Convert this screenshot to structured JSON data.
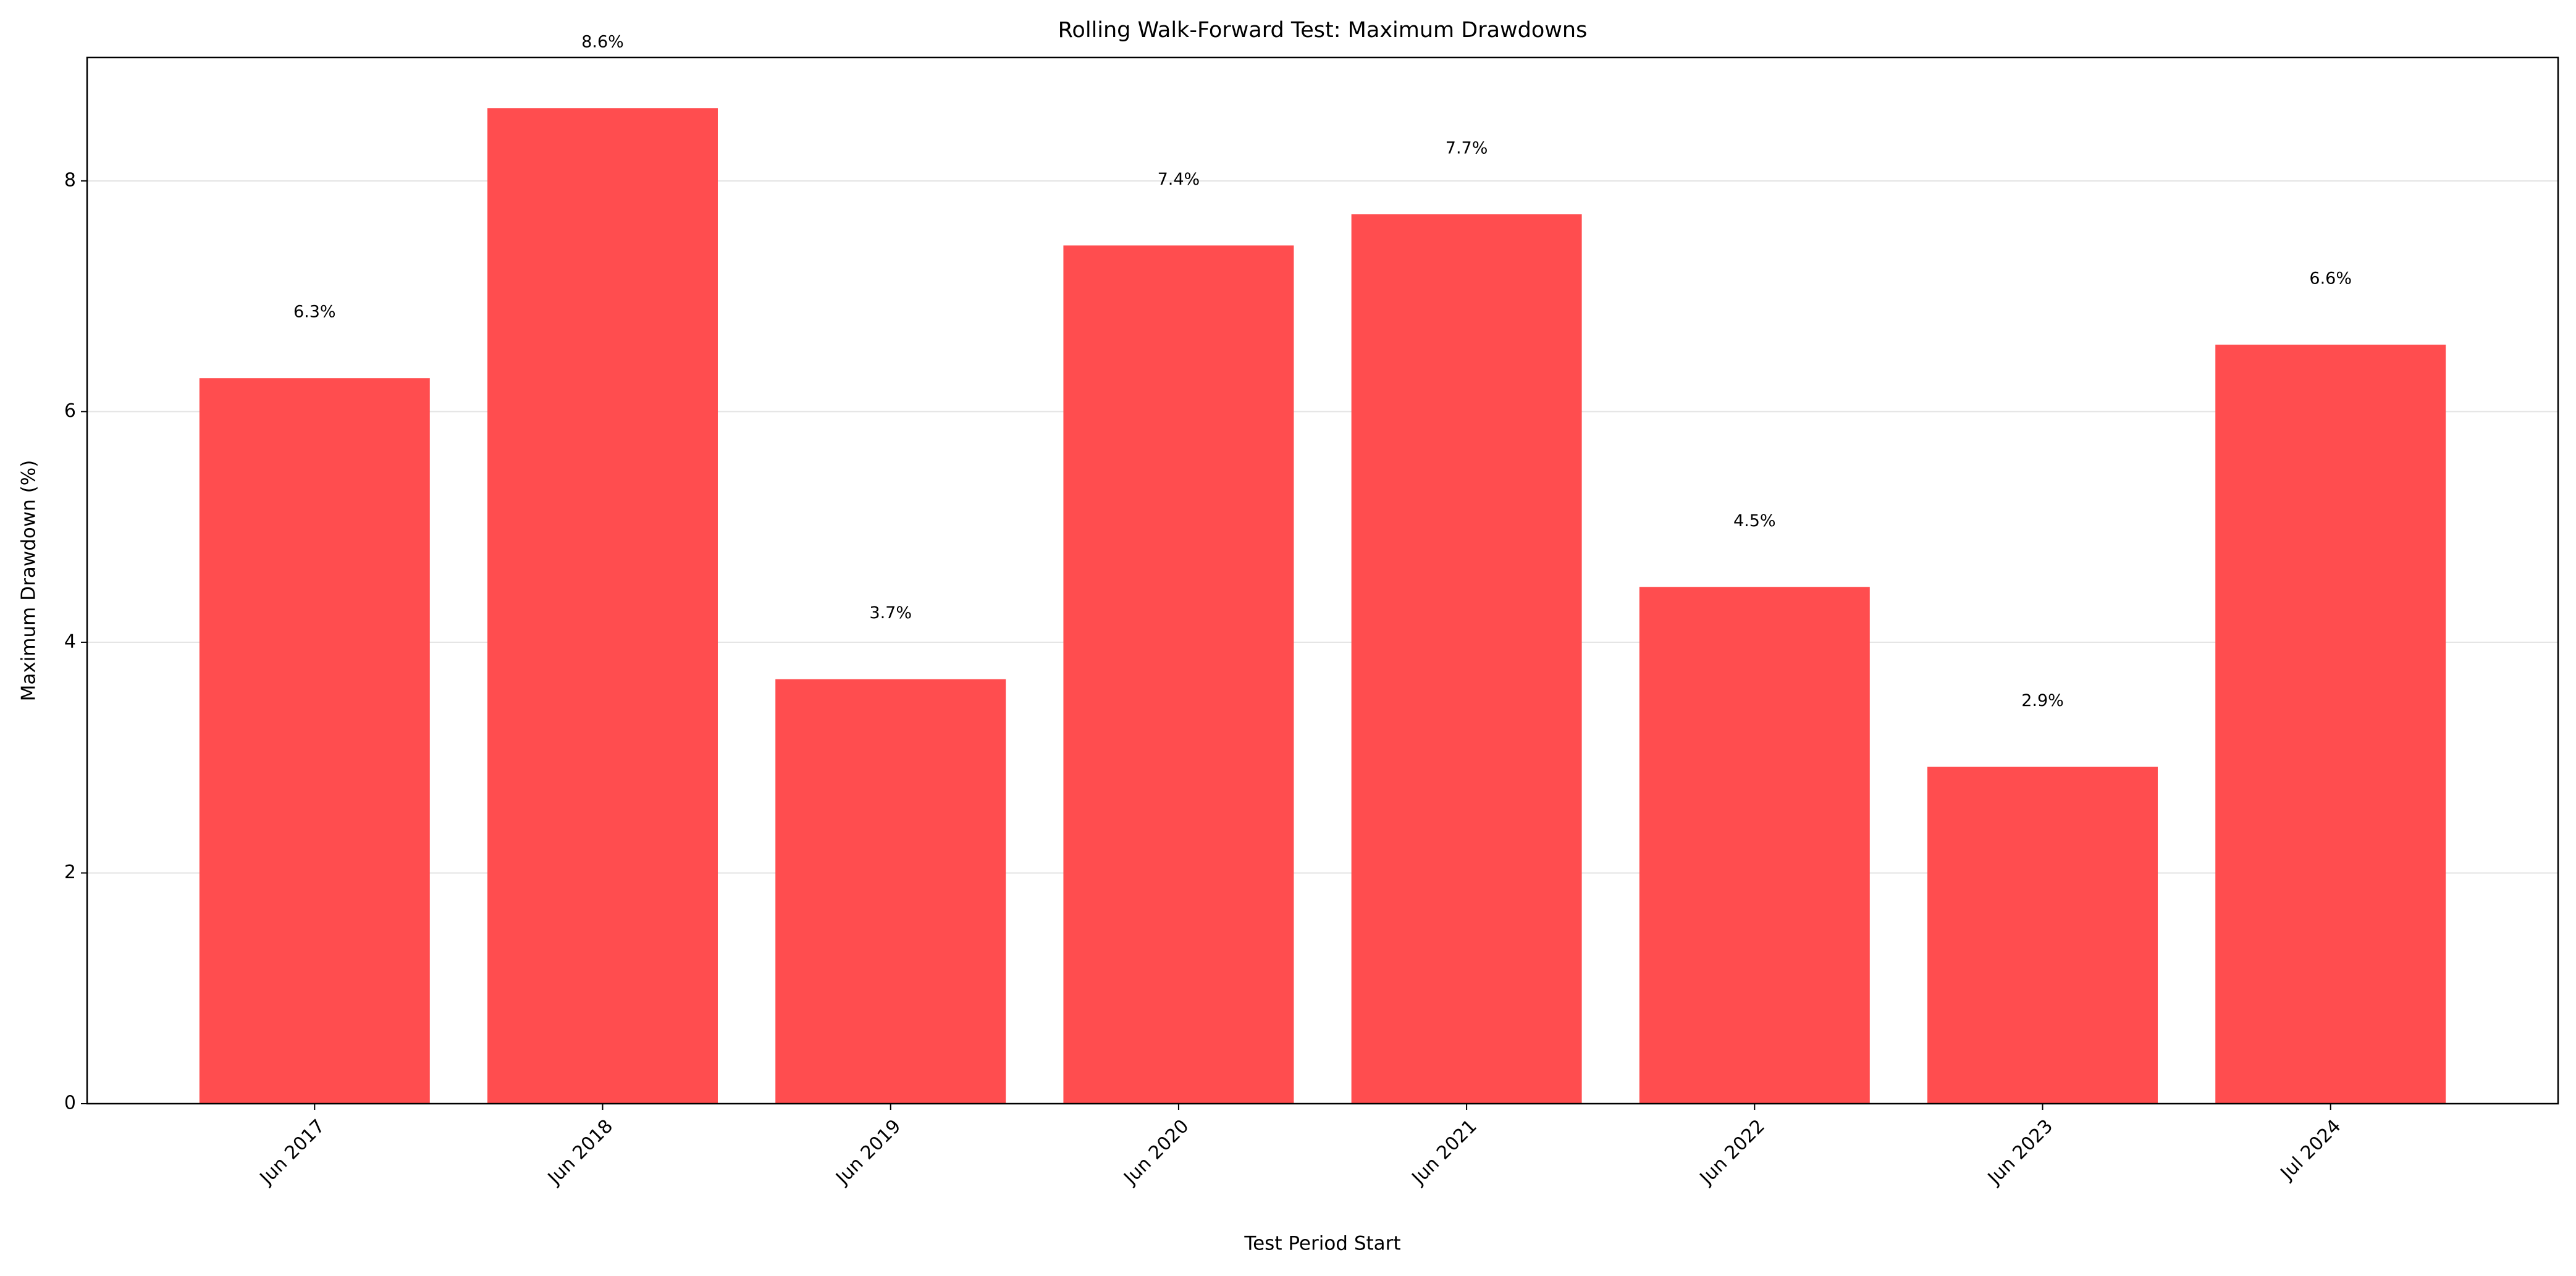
{
  "chart_data": {
    "type": "bar",
    "title": "Rolling Walk-Forward Test: Maximum Drawdowns",
    "x_label": "Test Period Start",
    "y_label": "Maximum Drawdown (%)",
    "categories": [
      "Jun 2017",
      "Jun 2018",
      "Jun 2019",
      "Jun 2020",
      "Jun 2021",
      "Jun 2022",
      "Jun 2023",
      "Jul 2024"
    ],
    "values": [
      6.29,
      8.63,
      3.68,
      7.44,
      7.71,
      4.48,
      2.92,
      6.58
    ],
    "value_labels": [
      "6.3%",
      "8.6%",
      "3.7%",
      "7.4%",
      "7.7%",
      "4.5%",
      "2.9%",
      "6.6%"
    ],
    "color": "#ff4d4f",
    "ylim": [
      0,
      9.07
    ],
    "yticks": [
      0,
      2,
      4,
      6,
      8
    ],
    "grid": true
  }
}
